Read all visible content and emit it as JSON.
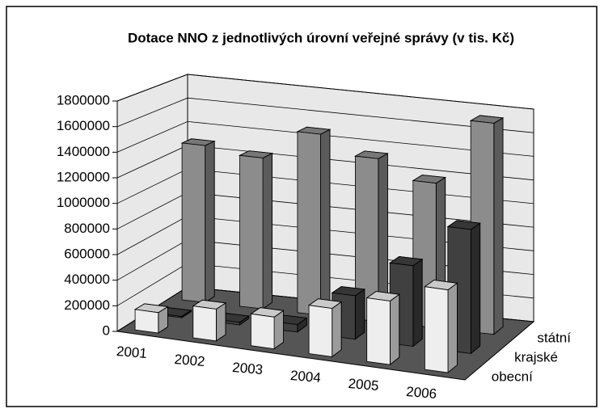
{
  "chart_data": {
    "type": "bar3d",
    "title": "Dotace NNO z jednotlivých úrovní veřejné správy (v tis. Kč)",
    "categories": [
      "2001",
      "2002",
      "2003",
      "2004",
      "2005",
      "2006"
    ],
    "series": [
      {
        "name": "obecní",
        "color": "#eeeeee",
        "values": [
          160000,
          250000,
          250000,
          380000,
          500000,
          650000
        ]
      },
      {
        "name": "krajské",
        "color": "#404040",
        "values": [
          10000,
          20000,
          60000,
          350000,
          650000,
          1000000
        ]
      },
      {
        "name": "státní",
        "color": "#8c8c8c",
        "values": [
          1300000,
          1250000,
          1500000,
          1350000,
          1200000,
          1750000
        ]
      }
    ],
    "ylim": [
      0,
      1800000
    ],
    "yticks": [
      0,
      200000,
      400000,
      600000,
      800000,
      1000000,
      1200000,
      1400000,
      1600000,
      1800000
    ],
    "grid": true
  }
}
